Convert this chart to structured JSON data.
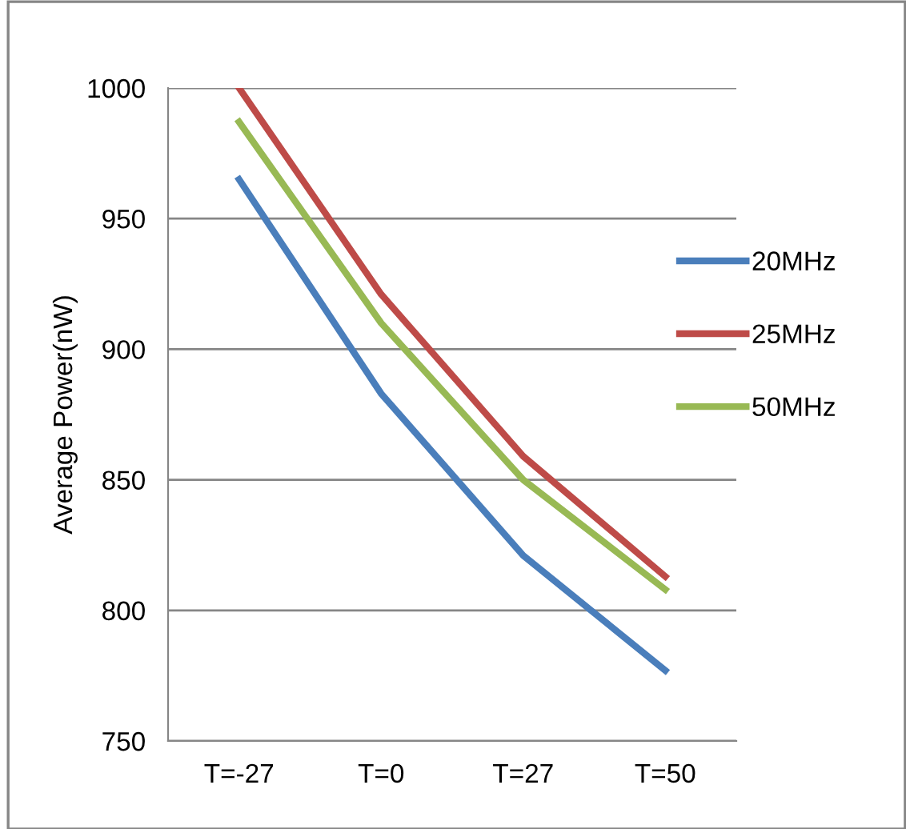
{
  "chart_data": {
    "type": "line",
    "ylabel": "Average Power(nW)",
    "categories": [
      "T=-27",
      "T=0",
      "T=27",
      "T=50"
    ],
    "series": [
      {
        "name": "20MHz",
        "color": "#4a7ebb",
        "values": [
          965,
          883,
          821,
          777
        ]
      },
      {
        "name": "25MHz",
        "color": "#be4b48",
        "values": [
          1000,
          921,
          859,
          813
        ]
      },
      {
        "name": "50MHz",
        "color": "#98b954",
        "values": [
          987,
          910,
          850,
          808
        ]
      }
    ],
    "ylim": [
      750,
      1000
    ],
    "yticks": [
      750,
      800,
      850,
      900,
      950,
      1000
    ],
    "grid": "y",
    "legend": "right",
    "marker": "none",
    "line_style": "solid"
  }
}
